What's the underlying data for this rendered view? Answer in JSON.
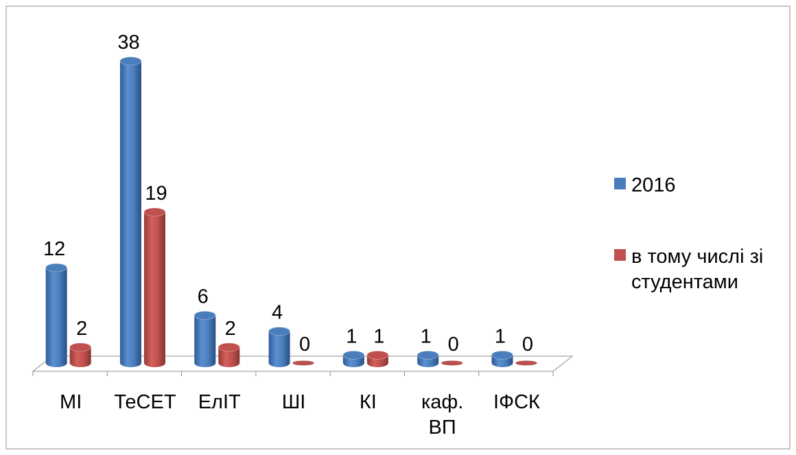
{
  "chart_data": {
    "type": "bar",
    "title": "",
    "xlabel": "",
    "ylabel": "",
    "categories": [
      [
        "МІ"
      ],
      [
        "ТеСЕТ"
      ],
      [
        "ЕлІТ"
      ],
      [
        "ШІ"
      ],
      [
        "КІ"
      ],
      [
        "каф.",
        "ВП"
      ],
      [
        "ІФСК"
      ]
    ],
    "series": [
      {
        "name": "2016",
        "color": "#4A7EBB",
        "values": [
          12,
          38,
          6,
          4,
          1,
          1,
          1
        ]
      },
      {
        "name_lines": [
          "в тому числі зі",
          "студентами"
        ],
        "color": "#C0504D",
        "values": [
          2,
          19,
          2,
          0,
          1,
          0,
          0
        ]
      }
    ],
    "ylim": [
      0,
      38
    ],
    "grid": false,
    "legend_position": "right",
    "bar_style": "3d-cylinder"
  }
}
